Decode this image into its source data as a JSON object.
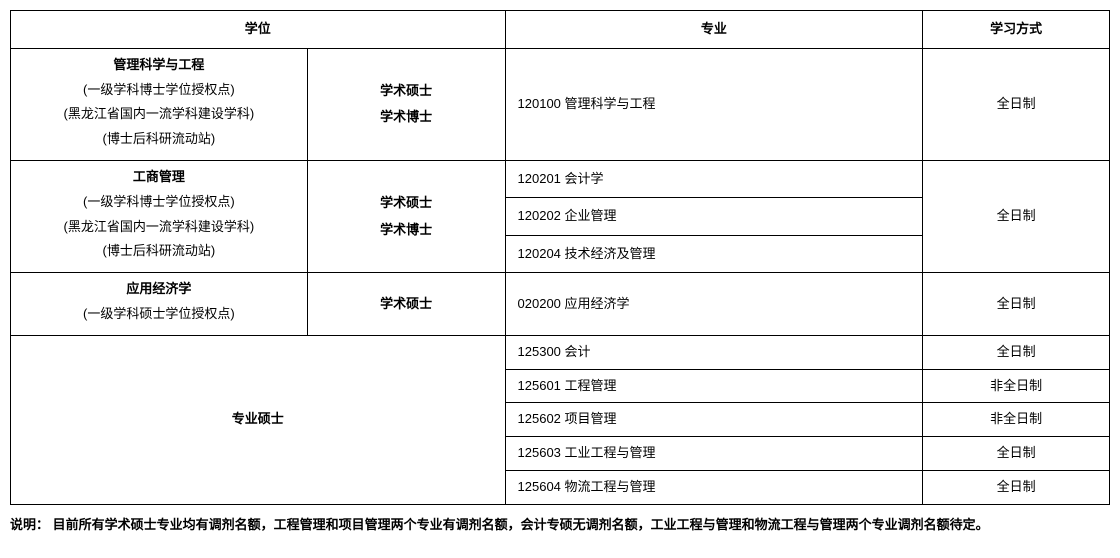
{
  "headers": {
    "degree": "学位",
    "major": "专业",
    "mode": "学习方式"
  },
  "rows": [
    {
      "discipline": {
        "title": "管理科学与工程",
        "subs": [
          "(一级学科博士学位授权点)",
          "(黑龙江省国内一流学科建设学科)",
          "(博士后科研流动站)"
        ]
      },
      "degreeTypes": [
        "学术硕士",
        "学术博士"
      ],
      "majors": [
        "120100  管理科学与工程"
      ],
      "mode": "全日制"
    },
    {
      "discipline": {
        "title": "工商管理",
        "subs": [
          "(一级学科博士学位授权点)",
          "(黑龙江省国内一流学科建设学科)",
          "(博士后科研流动站)"
        ]
      },
      "degreeTypes": [
        "学术硕士",
        "学术博士"
      ],
      "majors": [
        "120201  会计学",
        "120202  企业管理",
        "120204  技术经济及管理"
      ],
      "mode": "全日制"
    },
    {
      "discipline": {
        "title": "应用经济学",
        "subs": [
          "(一级学科硕士学位授权点)"
        ]
      },
      "degreeTypes": [
        "学术硕士"
      ],
      "majors": [
        "020200  应用经济学"
      ],
      "mode": "全日制"
    }
  ],
  "profSection": {
    "label": "专业硕士",
    "items": [
      {
        "major": "125300  会计",
        "mode": "全日制"
      },
      {
        "major": "125601  工程管理",
        "mode": "非全日制"
      },
      {
        "major": "125602  项目管理",
        "mode": "非全日制"
      },
      {
        "major": "125603  工业工程与管理",
        "mode": "全日制"
      },
      {
        "major": "125604  物流工程与管理",
        "mode": "全日制"
      }
    ]
  },
  "note": "说明：  目前所有学术硕士专业均有调剂名额，工程管理和项目管理两个专业有调剂名额，会计专硕无调剂名额，工业工程与管理和物流工程与管理两个专业调剂名额待定。"
}
